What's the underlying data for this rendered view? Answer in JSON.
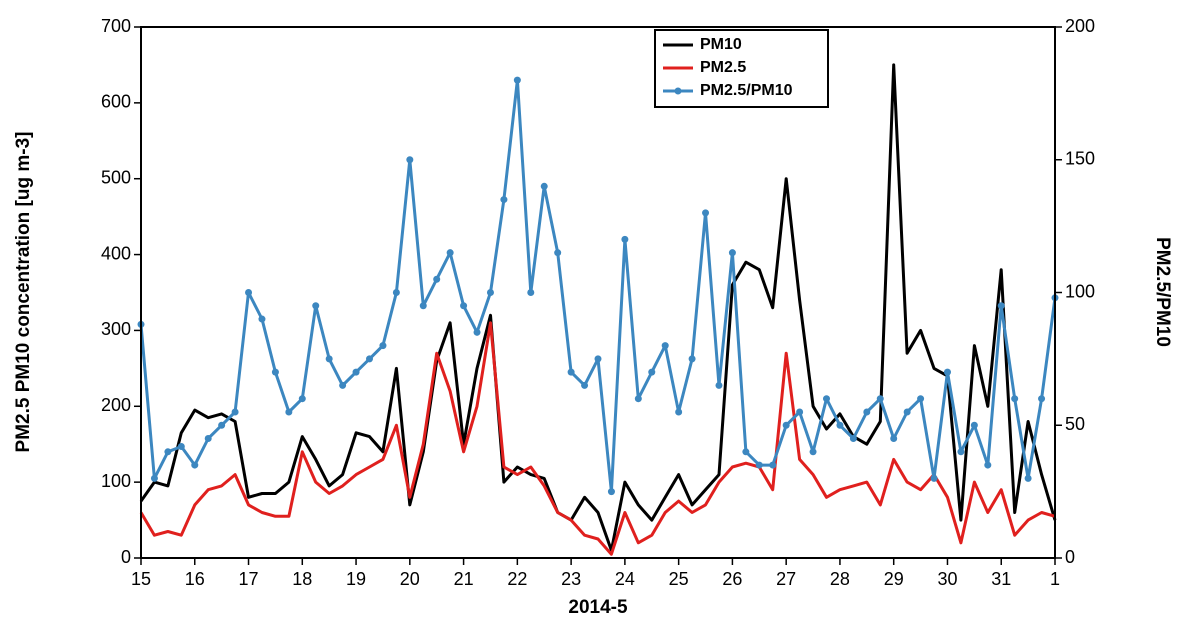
{
  "chart_data": {
    "type": "line",
    "xlabel": "2014-5",
    "ylabel": "PM2.5 PM10 concentration [ug m-3]",
    "y2label": "PM2.5/PM10",
    "legend": "upper center",
    "xlim": [
      15,
      32
    ],
    "xticks": [
      15,
      16,
      17,
      18,
      19,
      20,
      21,
      22,
      23,
      24,
      25,
      26,
      27,
      28,
      29,
      30,
      31,
      {
        "value": 32,
        "label": "1"
      }
    ],
    "ylim": [
      0,
      700
    ],
    "yticks": [
      0,
      100,
      200,
      300,
      400,
      500,
      600,
      700
    ],
    "y2lim": [
      0,
      200
    ],
    "y2ticks": [
      0,
      50,
      100,
      150,
      200
    ],
    "x": [
      15,
      15.25,
      15.5,
      15.75,
      16,
      16.25,
      16.5,
      16.75,
      17,
      17.25,
      17.5,
      17.75,
      18,
      18.25,
      18.5,
      18.75,
      19,
      19.25,
      19.5,
      19.75,
      20,
      20.25,
      20.5,
      20.75,
      21,
      21.25,
      21.5,
      21.75,
      22,
      22.25,
      22.5,
      22.75,
      23,
      23.25,
      23.5,
      23.75,
      24,
      24.25,
      24.5,
      24.75,
      25,
      25.25,
      25.5,
      25.75,
      26,
      26.25,
      26.5,
      26.75,
      27,
      27.25,
      27.5,
      27.75,
      28,
      28.25,
      28.5,
      28.75,
      29,
      29.25,
      29.5,
      29.75,
      30,
      30.25,
      30.5,
      30.75,
      31,
      31.25,
      31.5,
      31.75,
      32
    ],
    "series": [
      {
        "name": "PM10",
        "color": "#000000",
        "values": [
          75,
          100,
          95,
          165,
          195,
          185,
          190,
          180,
          80,
          85,
          85,
          100,
          160,
          130,
          95,
          110,
          165,
          160,
          140,
          250,
          70,
          140,
          260,
          310,
          150,
          250,
          320,
          100,
          120,
          110,
          105,
          60,
          50,
          80,
          60,
          10,
          100,
          70,
          50,
          80,
          110,
          70,
          90,
          110,
          360,
          390,
          380,
          330,
          500,
          340,
          200,
          170,
          190,
          160,
          150,
          180,
          650,
          270,
          300,
          250,
          240,
          50,
          280,
          200,
          380,
          60,
          180,
          110,
          50
        ]
      },
      {
        "name": "PM2.5",
        "color": "#e0201e",
        "values": [
          60,
          30,
          35,
          30,
          70,
          90,
          95,
          110,
          70,
          60,
          55,
          55,
          140,
          100,
          85,
          95,
          110,
          120,
          130,
          175,
          80,
          150,
          270,
          220,
          140,
          200,
          310,
          120,
          110,
          120,
          95,
          60,
          50,
          30,
          25,
          5,
          60,
          20,
          30,
          60,
          75,
          60,
          70,
          100,
          120,
          125,
          120,
          90,
          270,
          130,
          110,
          80,
          90,
          95,
          100,
          70,
          130,
          100,
          90,
          110,
          80,
          20,
          100,
          60,
          90,
          30,
          50,
          60,
          55
        ]
      },
      {
        "name": "PM2.5/PM10",
        "color": "#3c87c0",
        "axis": "y2",
        "marker": true,
        "values": [
          88,
          30,
          40,
          42,
          35,
          45,
          50,
          55,
          100,
          90,
          70,
          55,
          60,
          95,
          75,
          65,
          70,
          75,
          80,
          100,
          150,
          95,
          105,
          115,
          95,
          85,
          100,
          135,
          180,
          100,
          140,
          115,
          70,
          65,
          75,
          25,
          120,
          60,
          70,
          80,
          55,
          75,
          130,
          65,
          115,
          40,
          35,
          35,
          50,
          55,
          40,
          60,
          50,
          45,
          55,
          60,
          45,
          55,
          60,
          30,
          70,
          40,
          50,
          35,
          95,
          60,
          30,
          60,
          98
        ]
      }
    ]
  }
}
